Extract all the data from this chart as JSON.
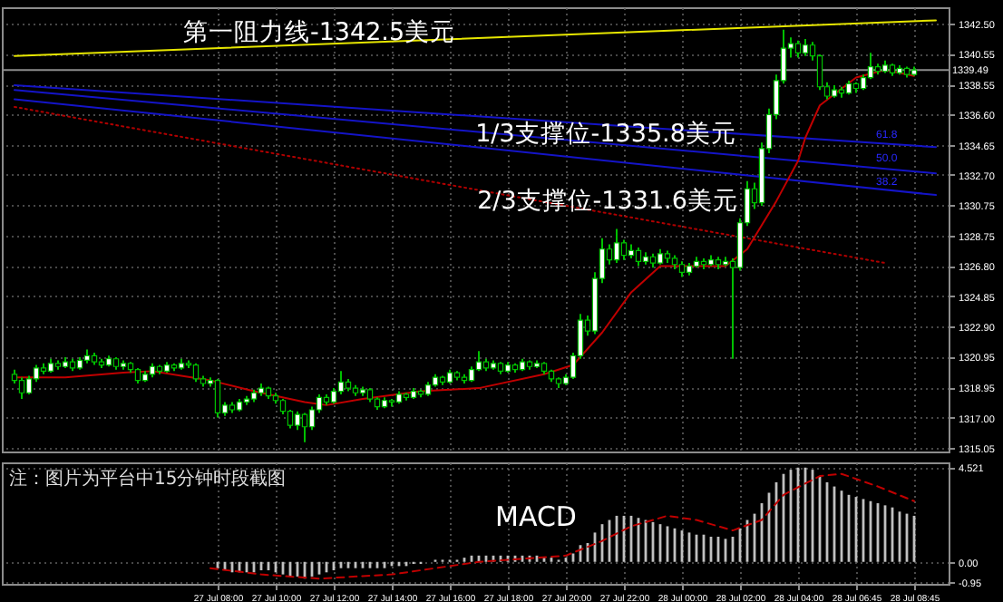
{
  "chart_data": [
    {
      "type": "candlestick",
      "color": "#00c000",
      "categories": [
        null,
        null,
        null,
        null,
        null,
        null,
        null,
        null,
        null,
        null,
        null,
        null,
        null,
        null,
        null,
        null,
        null,
        null,
        null,
        null,
        null,
        null,
        null,
        null,
        null,
        null,
        null,
        null,
        null,
        null,
        null,
        null,
        null,
        null,
        null,
        null,
        null,
        null,
        null,
        null,
        null,
        null,
        null,
        null,
        null,
        null,
        null,
        null,
        null,
        null,
        null,
        null,
        null,
        null,
        null,
        null,
        null,
        null,
        null,
        null,
        null,
        null,
        null,
        null,
        null,
        null,
        null,
        null,
        null,
        null,
        null,
        null,
        null,
        null,
        null,
        null,
        null,
        null,
        null,
        null,
        null,
        null,
        null,
        null,
        null,
        null,
        null,
        null,
        null,
        null,
        null,
        null,
        null,
        null,
        null,
        null,
        null,
        null,
        null,
        null,
        null,
        null,
        null,
        null,
        null,
        null,
        null,
        null,
        null,
        null,
        null,
        null,
        null,
        null,
        null,
        null,
        null,
        null,
        null,
        null,
        null,
        null,
        null,
        null,
        null,
        null,
        null,
        null
      ],
      "ohlc": [
        [
          1319.8,
          1320.1,
          1319.2,
          1319.4
        ],
        [
          1319.4,
          1319.6,
          1318.2,
          1318.6
        ],
        [
          1318.6,
          1319.7,
          1318.5,
          1319.5
        ],
        [
          1319.5,
          1320.4,
          1319.3,
          1320.2
        ],
        [
          1320.2,
          1320.5,
          1319.8,
          1320.0
        ],
        [
          1320.0,
          1320.8,
          1319.9,
          1320.5
        ],
        [
          1320.5,
          1320.7,
          1320.1,
          1320.3
        ],
        [
          1320.3,
          1320.9,
          1320.2,
          1320.6
        ],
        [
          1320.6,
          1320.8,
          1320.0,
          1320.2
        ],
        [
          1320.2,
          1320.9,
          1320.1,
          1320.7
        ],
        [
          1320.7,
          1321.4,
          1320.5,
          1321.0
        ],
        [
          1321.0,
          1321.2,
          1320.4,
          1320.6
        ],
        [
          1320.6,
          1320.8,
          1320.2,
          1320.4
        ],
        [
          1320.4,
          1321.0,
          1320.3,
          1320.8
        ],
        [
          1320.8,
          1320.9,
          1320.1,
          1320.3
        ],
        [
          1320.3,
          1320.7,
          1320.1,
          1320.5
        ],
        [
          1320.5,
          1320.6,
          1319.9,
          1320.1
        ],
        [
          1320.1,
          1320.2,
          1319.2,
          1319.4
        ],
        [
          1319.4,
          1320.0,
          1319.3,
          1319.8
        ],
        [
          1319.8,
          1320.5,
          1319.6,
          1320.3
        ],
        [
          1320.3,
          1320.4,
          1319.8,
          1320.0
        ],
        [
          1320.0,
          1320.6,
          1319.9,
          1320.4
        ],
        [
          1320.4,
          1320.5,
          1320.0,
          1320.2
        ],
        [
          1320.2,
          1320.8,
          1320.1,
          1320.5
        ],
        [
          1320.5,
          1320.7,
          1320.2,
          1320.4
        ],
        [
          1320.4,
          1320.5,
          1319.3,
          1319.5
        ],
        [
          1319.5,
          1319.7,
          1319.0,
          1319.2
        ],
        [
          1319.2,
          1319.6,
          1319.0,
          1319.4
        ],
        [
          1319.4,
          1319.5,
          1317.0,
          1317.3
        ],
        [
          1317.3,
          1318.0,
          1317.1,
          1317.8
        ],
        [
          1317.8,
          1318.0,
          1317.3,
          1317.5
        ],
        [
          1317.5,
          1318.2,
          1317.4,
          1318.0
        ],
        [
          1318.0,
          1318.4,
          1317.8,
          1318.2
        ],
        [
          1318.2,
          1318.8,
          1318.0,
          1318.6
        ],
        [
          1318.6,
          1319.2,
          1318.4,
          1318.9
        ],
        [
          1318.9,
          1319.0,
          1318.2,
          1318.4
        ],
        [
          1318.4,
          1318.6,
          1317.9,
          1318.1
        ],
        [
          1318.1,
          1318.2,
          1317.2,
          1317.4
        ],
        [
          1317.4,
          1317.5,
          1316.3,
          1316.5
        ],
        [
          1316.5,
          1317.4,
          1316.2,
          1317.2
        ],
        [
          1317.2,
          1317.3,
          1315.4,
          1316.4
        ],
        [
          1316.4,
          1317.7,
          1316.2,
          1317.5
        ],
        [
          1317.5,
          1318.5,
          1317.3,
          1318.3
        ],
        [
          1318.3,
          1318.5,
          1317.8,
          1318.0
        ],
        [
          1318.0,
          1318.9,
          1317.9,
          1318.7
        ],
        [
          1318.7,
          1320.0,
          1318.5,
          1319.3
        ],
        [
          1319.3,
          1319.5,
          1318.7,
          1318.9
        ],
        [
          1318.9,
          1319.1,
          1318.4,
          1318.6
        ],
        [
          1318.6,
          1319.0,
          1318.4,
          1318.8
        ],
        [
          1318.8,
          1318.9,
          1318.0,
          1318.2
        ],
        [
          1318.2,
          1318.3,
          1317.5,
          1317.7
        ],
        [
          1317.7,
          1318.3,
          1317.6,
          1318.1
        ],
        [
          1318.1,
          1318.2,
          1317.7,
          1318.0
        ],
        [
          1318.0,
          1318.7,
          1317.9,
          1318.5
        ],
        [
          1318.5,
          1318.6,
          1318.1,
          1318.3
        ],
        [
          1318.3,
          1318.9,
          1318.2,
          1318.7
        ],
        [
          1318.7,
          1318.8,
          1318.3,
          1318.5
        ],
        [
          1318.5,
          1319.3,
          1318.4,
          1319.1
        ],
        [
          1319.1,
          1319.8,
          1319.0,
          1319.6
        ],
        [
          1319.6,
          1319.7,
          1319.1,
          1319.3
        ],
        [
          1319.3,
          1320.1,
          1319.2,
          1319.9
        ],
        [
          1319.9,
          1320.0,
          1319.4,
          1319.6
        ],
        [
          1319.6,
          1319.8,
          1319.2,
          1319.4
        ],
        [
          1319.4,
          1320.3,
          1319.3,
          1320.1
        ],
        [
          1320.1,
          1321.3,
          1320.0,
          1320.6
        ],
        [
          1320.6,
          1320.8,
          1320.0,
          1320.2
        ],
        [
          1320.2,
          1320.7,
          1320.1,
          1320.5
        ],
        [
          1320.5,
          1320.6,
          1319.8,
          1320.0
        ],
        [
          1320.0,
          1320.6,
          1319.9,
          1320.4
        ],
        [
          1320.4,
          1320.5,
          1319.9,
          1320.1
        ],
        [
          1320.1,
          1320.8,
          1320.0,
          1320.6
        ],
        [
          1320.6,
          1320.7,
          1320.1,
          1320.3
        ],
        [
          1320.3,
          1320.7,
          1320.2,
          1320.5
        ],
        [
          1320.5,
          1320.6,
          1319.8,
          1320.0
        ],
        [
          1320.0,
          1320.1,
          1319.3,
          1319.5
        ],
        [
          1319.5,
          1319.6,
          1318.9,
          1319.2
        ],
        [
          1319.2,
          1319.8,
          1319.1,
          1319.6
        ],
        [
          1319.6,
          1321.2,
          1319.5,
          1321.0
        ],
        [
          1321.0,
          1323.7,
          1320.8,
          1323.3
        ],
        [
          1323.3,
          1323.6,
          1322.3,
          1322.6
        ],
        [
          1322.6,
          1326.4,
          1322.4,
          1326.0
        ],
        [
          1326.0,
          1328.6,
          1325.7,
          1327.9
        ],
        [
          1327.9,
          1328.2,
          1326.9,
          1327.2
        ],
        [
          1327.2,
          1329.2,
          1327.0,
          1328.3
        ],
        [
          1328.3,
          1328.5,
          1327.2,
          1327.5
        ],
        [
          1327.5,
          1328.2,
          1327.3,
          1327.8
        ],
        [
          1327.8,
          1328.0,
          1326.8,
          1327.1
        ],
        [
          1327.1,
          1327.7,
          1326.9,
          1327.4
        ],
        [
          1327.4,
          1327.6,
          1326.7,
          1327.0
        ],
        [
          1327.0,
          1327.9,
          1326.9,
          1327.6
        ],
        [
          1327.6,
          1327.8,
          1327.0,
          1327.3
        ],
        [
          1327.3,
          1327.5,
          1326.6,
          1326.9
        ],
        [
          1326.9,
          1327.1,
          1326.1,
          1326.4
        ],
        [
          1326.4,
          1327.0,
          1326.2,
          1326.8
        ],
        [
          1326.8,
          1327.4,
          1326.7,
          1327.1
        ],
        [
          1327.1,
          1327.3,
          1326.6,
          1326.9
        ],
        [
          1326.9,
          1327.5,
          1326.8,
          1327.2
        ],
        [
          1327.2,
          1327.4,
          1326.6,
          1326.9
        ],
        [
          1326.9,
          1327.4,
          1326.8,
          1327.1
        ],
        [
          1327.1,
          1327.3,
          1320.8,
          1326.7
        ],
        [
          1326.7,
          1329.9,
          1326.5,
          1329.6
        ],
        [
          1329.6,
          1332.3,
          1329.4,
          1331.8
        ],
        [
          1331.8,
          1332.2,
          1330.5,
          1330.9
        ],
        [
          1330.9,
          1334.8,
          1330.7,
          1334.4
        ],
        [
          1334.4,
          1337.0,
          1334.1,
          1336.6
        ],
        [
          1336.6,
          1339.2,
          1336.3,
          1338.8
        ],
        [
          1338.8,
          1342.1,
          1338.6,
          1340.9
        ],
        [
          1340.9,
          1341.6,
          1340.3,
          1341.2
        ],
        [
          1341.2,
          1341.4,
          1340.3,
          1340.6
        ],
        [
          1340.6,
          1341.5,
          1340.4,
          1341.1
        ],
        [
          1341.1,
          1341.3,
          1340.1,
          1340.4
        ],
        [
          1340.4,
          1340.5,
          1338.2,
          1338.4
        ],
        [
          1338.4,
          1338.7,
          1337.6,
          1337.8
        ],
        [
          1337.8,
          1338.5,
          1337.7,
          1338.2
        ],
        [
          1338.2,
          1338.4,
          1337.7,
          1338.0
        ],
        [
          1338.0,
          1338.8,
          1337.9,
          1338.6
        ],
        [
          1338.6,
          1338.7,
          1338.0,
          1338.3
        ],
        [
          1338.3,
          1339.2,
          1338.2,
          1339.0
        ],
        [
          1339.0,
          1340.6,
          1338.9,
          1339.7
        ],
        [
          1339.7,
          1339.9,
          1339.2,
          1339.4
        ],
        [
          1339.4,
          1340.1,
          1339.3,
          1339.8
        ],
        [
          1339.8,
          1339.9,
          1339.1,
          1339.3
        ],
        [
          1339.3,
          1339.8,
          1339.2,
          1339.6
        ],
        [
          1339.6,
          1339.7,
          1339.0,
          1339.2
        ],
        [
          1339.2,
          1339.7,
          1339.1,
          1339.49
        ],
        null,
        null,
        null
      ],
      "series": [
        {
          "type": "line",
          "color": "#e6e600",
          "values": [
            1340.4,
            null,
            null,
            null,
            null,
            null,
            null,
            null,
            null,
            null,
            null,
            null,
            null,
            null,
            null,
            null,
            null,
            null,
            null,
            null,
            null,
            null,
            null,
            null,
            null,
            null,
            null,
            null,
            null,
            null,
            null,
            null,
            null,
            null,
            null,
            null,
            null,
            null,
            null,
            null,
            null,
            null,
            null,
            null,
            null,
            null,
            null,
            null,
            null,
            null,
            null,
            null,
            null,
            null,
            null,
            null,
            null,
            null,
            null,
            null,
            null,
            null,
            null,
            null,
            null,
            null,
            null,
            null,
            null,
            null,
            null,
            null,
            null,
            null,
            null,
            null,
            null,
            null,
            null,
            null,
            null,
            null,
            null,
            null,
            null,
            null,
            null,
            null,
            null,
            null,
            null,
            null,
            null,
            null,
            null,
            null,
            null,
            null,
            null,
            null,
            null,
            null,
            null,
            null,
            null,
            null,
            null,
            null,
            null,
            null,
            null,
            null,
            null,
            null,
            null,
            null,
            null,
            null,
            null,
            null,
            null,
            null,
            null,
            null,
            null,
            null,
            null,
            1342.7
          ]
        },
        {
          "type": "line",
          "color": "#1414c8",
          "values": [
            1338.5,
            null,
            null,
            null,
            null,
            null,
            null,
            null,
            null,
            null,
            null,
            null,
            null,
            null,
            null,
            null,
            null,
            null,
            null,
            null,
            null,
            null,
            null,
            null,
            null,
            null,
            null,
            null,
            null,
            null,
            null,
            null,
            null,
            null,
            null,
            null,
            null,
            null,
            null,
            null,
            null,
            null,
            null,
            null,
            null,
            null,
            null,
            null,
            null,
            null,
            null,
            null,
            null,
            null,
            null,
            null,
            null,
            null,
            null,
            null,
            null,
            null,
            null,
            null,
            null,
            null,
            null,
            null,
            null,
            null,
            null,
            null,
            null,
            null,
            null,
            null,
            null,
            null,
            null,
            null,
            null,
            null,
            null,
            null,
            null,
            null,
            null,
            null,
            null,
            null,
            null,
            null,
            null,
            null,
            null,
            null,
            null,
            null,
            null,
            null,
            null,
            null,
            null,
            null,
            null,
            null,
            null,
            null,
            null,
            null,
            null,
            null,
            null,
            null,
            null,
            null,
            null,
            null,
            null,
            null,
            null,
            null,
            null,
            null,
            null,
            null,
            null,
            1334.5
          ]
        },
        {
          "type": "line",
          "color": "#1414c8",
          "values": [
            1338.2,
            null,
            null,
            null,
            null,
            null,
            null,
            null,
            null,
            null,
            null,
            null,
            null,
            null,
            null,
            null,
            null,
            null,
            null,
            null,
            null,
            null,
            null,
            null,
            null,
            null,
            null,
            null,
            null,
            null,
            null,
            null,
            null,
            null,
            null,
            null,
            null,
            null,
            null,
            null,
            null,
            null,
            null,
            null,
            null,
            null,
            null,
            null,
            null,
            null,
            null,
            null,
            null,
            null,
            null,
            null,
            null,
            null,
            null,
            null,
            null,
            null,
            null,
            null,
            null,
            null,
            null,
            null,
            null,
            null,
            null,
            null,
            null,
            null,
            null,
            null,
            null,
            null,
            null,
            null,
            null,
            null,
            null,
            null,
            null,
            null,
            null,
            null,
            null,
            null,
            null,
            null,
            null,
            null,
            null,
            null,
            null,
            null,
            null,
            null,
            null,
            null,
            null,
            null,
            null,
            null,
            null,
            null,
            null,
            null,
            null,
            null,
            null,
            null,
            null,
            null,
            null,
            null,
            null,
            null,
            null,
            null,
            null,
            null,
            null,
            null,
            null,
            1332.8
          ]
        },
        {
          "type": "line",
          "color": "#1414c8",
          "values": [
            1337.6,
            null,
            null,
            null,
            null,
            null,
            null,
            null,
            null,
            null,
            null,
            null,
            null,
            null,
            null,
            null,
            null,
            null,
            null,
            null,
            null,
            null,
            null,
            null,
            null,
            null,
            null,
            null,
            null,
            null,
            null,
            null,
            null,
            null,
            null,
            null,
            null,
            null,
            null,
            null,
            null,
            null,
            null,
            null,
            null,
            null,
            null,
            null,
            null,
            null,
            null,
            null,
            null,
            null,
            null,
            null,
            null,
            null,
            null,
            null,
            null,
            null,
            null,
            null,
            null,
            null,
            null,
            null,
            null,
            null,
            null,
            null,
            null,
            null,
            null,
            null,
            null,
            null,
            null,
            null,
            null,
            null,
            null,
            null,
            null,
            null,
            null,
            null,
            null,
            null,
            null,
            null,
            null,
            null,
            null,
            null,
            null,
            null,
            null,
            null,
            null,
            null,
            null,
            null,
            null,
            null,
            null,
            null,
            null,
            null,
            null,
            null,
            null,
            null,
            null,
            null,
            null,
            null,
            null,
            null,
            null,
            null,
            null,
            null,
            null,
            null,
            null,
            1331.4
          ]
        },
        {
          "type": "line",
          "color": "#b00000",
          "line_style": "dotted",
          "values": [
            1337.1,
            null,
            null,
            null,
            null,
            null,
            null,
            null,
            null,
            null,
            null,
            null,
            null,
            null,
            null,
            null,
            null,
            null,
            null,
            null,
            null,
            null,
            null,
            null,
            null,
            null,
            null,
            null,
            null,
            null,
            null,
            null,
            null,
            null,
            null,
            null,
            null,
            null,
            null,
            null,
            null,
            null,
            null,
            null,
            null,
            null,
            null,
            null,
            null,
            null,
            null,
            null,
            null,
            null,
            null,
            null,
            null,
            null,
            null,
            null,
            null,
            null,
            null,
            null,
            null,
            null,
            null,
            null,
            null,
            null,
            null,
            null,
            null,
            null,
            null,
            null,
            null,
            null,
            null,
            null,
            null,
            null,
            null,
            null,
            null,
            null,
            null,
            null,
            null,
            null,
            null,
            null,
            null,
            null,
            null,
            null,
            null,
            null,
            null,
            null,
            null,
            null,
            null,
            null,
            null,
            null,
            null,
            null,
            null,
            null,
            null,
            null,
            null,
            null,
            null,
            null,
            null,
            null,
            null,
            null,
            1327.0,
            null,
            null,
            null,
            null,
            null,
            null,
            null
          ]
        },
        {
          "type": "line",
          "color": "#c00000",
          "values": [
            1319.6,
            null,
            null,
            null,
            null,
            null,
            null,
            1319.6,
            null,
            null,
            null,
            null,
            null,
            null,
            null,
            1319.9,
            null,
            null,
            null,
            1320.0,
            null,
            null,
            null,
            1319.7,
            null,
            null,
            null,
            1319.4,
            null,
            null,
            null,
            null,
            null,
            1318.7,
            null,
            null,
            null,
            null,
            null,
            null,
            1318.0,
            null,
            null,
            1317.8,
            null,
            null,
            null,
            null,
            1318.2,
            null,
            null,
            null,
            null,
            null,
            null,
            null,
            1318.7,
            null,
            null,
            null,
            null,
            null,
            null,
            null,
            1318.9,
            null,
            null,
            null,
            null,
            null,
            null,
            null,
            null,
            1319.8,
            null,
            null,
            null,
            1320.4,
            null,
            null,
            null,
            1322.5,
            null,
            null,
            null,
            1325.1,
            null,
            null,
            null,
            1326.8,
            null,
            null,
            null,
            null,
            null,
            null,
            null,
            null,
            1326.8,
            null,
            null,
            1327.9,
            null,
            null,
            null,
            1331.0,
            null,
            null,
            1333.6,
            1335.1,
            null,
            1337.2,
            null,
            null,
            null,
            null,
            1339.0,
            null,
            null,
            null,
            1339.5,
            null,
            null,
            null,
            1339.1,
            null,
            null,
            null
          ]
        }
      ],
      "ref_lines": [
        {
          "axis": "y",
          "value": 1339.49,
          "label": "1339.49",
          "color": "#8c8c8c"
        }
      ],
      "annotations": [
        "第一阻力线-1342.5美元",
        "1/3支撑位-1335.8美元",
        "2/3支撑位-1331.6美元",
        "61.8",
        "50.0",
        "38.2"
      ],
      "ylim": [
        1314.8,
        1343.55
      ],
      "yticks": [
        {
          "value": 1342.5,
          "label": "1342.50"
        },
        1340.55,
        1338.55,
        {
          "value": 1336.6,
          "label": "1336.60"
        },
        1334.65,
        {
          "value": 1332.7,
          "label": "1332.70"
        },
        1330.75,
        1328.75,
        {
          "value": 1326.8,
          "label": "1326.80"
        },
        1324.85,
        {
          "value": 1322.9,
          "label": "1322.90"
        },
        1320.95,
        1318.95,
        {
          "value": 1317,
          "label": "1317.00"
        },
        1315.05
      ],
      "grid": true,
      "tick_labels": "y"
    },
    {
      "type": "bar",
      "title": "MACD",
      "categories": [
        null,
        null,
        null,
        null,
        null,
        null,
        null,
        null,
        null,
        null,
        null,
        null,
        null,
        null,
        null,
        null,
        null,
        null,
        null,
        null,
        null,
        null,
        null,
        null,
        null,
        null,
        null,
        null,
        "27 Jul 08:00",
        null,
        null,
        null,
        null,
        null,
        null,
        null,
        "27 Jul 10:00",
        null,
        null,
        null,
        null,
        null,
        null,
        null,
        "27 Jul 12:00",
        null,
        null,
        null,
        null,
        null,
        null,
        null,
        "27 Jul 14:00",
        null,
        null,
        null,
        null,
        null,
        null,
        null,
        "27 Jul 16:00",
        null,
        null,
        null,
        null,
        null,
        null,
        null,
        "27 Jul 18:00",
        null,
        null,
        null,
        null,
        null,
        null,
        null,
        "27 Jul 20:00",
        null,
        null,
        null,
        null,
        null,
        null,
        null,
        "27 Jul 22:00",
        null,
        null,
        null,
        null,
        null,
        null,
        null,
        "28 Jul 00:00",
        null,
        null,
        null,
        null,
        null,
        null,
        null,
        "28 Jul 02:00",
        null,
        null,
        null,
        null,
        null,
        null,
        null,
        "28 Jul 04:00",
        null,
        null,
        null,
        null,
        null,
        null,
        null,
        "28 Jul 06:45",
        null,
        null,
        null,
        null,
        null,
        null,
        null,
        "28 Jul 08:45",
        null,
        null,
        null
      ],
      "series": [
        {
          "color": "#c0c0c0",
          "values": [
            null,
            null,
            null,
            null,
            null,
            null,
            null,
            null,
            null,
            null,
            null,
            null,
            null,
            null,
            null,
            null,
            null,
            null,
            null,
            null,
            null,
            null,
            null,
            null,
            null,
            null,
            null,
            null,
            -0.3,
            -0.4,
            -0.5,
            -0.5,
            -0.5,
            -0.5,
            -0.4,
            -0.4,
            -0.5,
            -0.6,
            -0.7,
            -0.7,
            -0.8,
            -0.7,
            -0.6,
            -0.5,
            -0.4,
            -0.3,
            -0.3,
            -0.3,
            -0.3,
            -0.3,
            -0.3,
            -0.3,
            -0.2,
            -0.2,
            -0.2,
            -0.1,
            -0.1,
            0.0,
            0.1,
            0.1,
            0.1,
            0.1,
            0.2,
            0.3,
            0.3,
            0.3,
            0.3,
            0.3,
            0.3,
            0.3,
            0.3,
            0.3,
            0.3,
            0.2,
            0.2,
            0.1,
            0.2,
            0.4,
            0.8,
            0.9,
            1.4,
            1.8,
            2.0,
            2.2,
            2.2,
            2.2,
            2.1,
            2.0,
            1.9,
            1.8,
            1.7,
            1.6,
            1.5,
            1.4,
            1.3,
            1.3,
            1.2,
            1.2,
            1.1,
            1.2,
            1.6,
            2.0,
            2.3,
            2.8,
            3.3,
            3.8,
            4.2,
            4.4,
            4.5,
            4.5,
            4.4,
            4.1,
            3.8,
            3.6,
            3.4,
            3.2,
            3.1,
            3.0,
            2.9,
            2.8,
            2.7,
            2.6,
            2.4,
            2.3,
            2.2,
            null,
            null,
            null
          ]
        },
        {
          "type": "line",
          "color": "#c00000",
          "line_style": "dashed",
          "values": [
            null,
            null,
            null,
            null,
            null,
            null,
            null,
            null,
            null,
            null,
            null,
            null,
            null,
            null,
            null,
            null,
            null,
            null,
            null,
            null,
            null,
            null,
            null,
            null,
            null,
            null,
            null,
            -0.3,
            null,
            null,
            null,
            null,
            null,
            null,
            -0.6,
            null,
            null,
            null,
            null,
            null,
            null,
            null,
            -0.8,
            null,
            null,
            null,
            null,
            null,
            null,
            null,
            null,
            null,
            -0.6,
            null,
            null,
            null,
            null,
            null,
            null,
            null,
            null,
            null,
            null,
            null,
            0.0,
            null,
            null,
            null,
            null,
            null,
            null,
            null,
            0.2,
            null,
            null,
            null,
            0.3,
            null,
            null,
            null,
            null,
            1.0,
            null,
            null,
            null,
            1.7,
            null,
            null,
            null,
            null,
            2.2,
            null,
            null,
            null,
            2.0,
            null,
            null,
            null,
            null,
            1.5,
            null,
            null,
            null,
            2.0,
            null,
            null,
            3.2,
            null,
            null,
            null,
            null,
            4.1,
            null,
            null,
            4.2,
            null,
            null,
            null,
            null,
            3.6,
            null,
            null,
            null,
            null,
            2.9,
            null,
            null,
            null
          ]
        }
      ],
      "annotations": [
        "注：图片为平台中15分钟时段截图"
      ],
      "ylim": [
        -1.05,
        4.75
      ],
      "yticks": [
        4.521,
        {
          "value": 0,
          "label": "0.00"
        },
        -0.95
      ],
      "grid": true
    }
  ]
}
